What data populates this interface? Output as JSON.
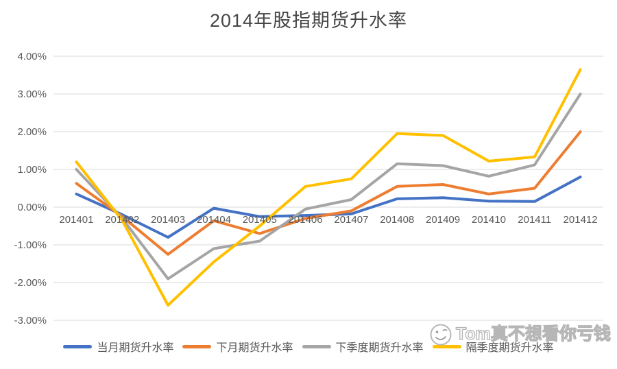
{
  "title": "2014年股指期货升水率",
  "watermark": {
    "icon": "smiley-face-icon",
    "text": "Tom真不想看你亏钱"
  },
  "colors": {
    "gridline": "#d9d9d9",
    "axis_text": "#595959",
    "title_text": "#454545",
    "series_blue": "#4472C4",
    "series_orange": "#ED7D31",
    "series_gray": "#A5A5A5",
    "series_yellow": "#FFC000"
  },
  "chart_data": {
    "type": "line",
    "title": "2014年股指期货升水率",
    "xlabel": "",
    "ylabel": "",
    "grid": true,
    "legend_position": "bottom",
    "ylim": [
      -3,
      4
    ],
    "y_ticks": [
      {
        "label": "4.00%",
        "value": 4
      },
      {
        "label": "3.00%",
        "value": 3
      },
      {
        "label": "2.00%",
        "value": 2
      },
      {
        "label": "1.00%",
        "value": 1
      },
      {
        "label": "0.00%",
        "value": 0
      },
      {
        "label": "-1.00%",
        "value": -1
      },
      {
        "label": "-2.00%",
        "value": -2
      },
      {
        "label": "-3.00%",
        "value": -3
      }
    ],
    "categories": [
      "201401",
      "201402",
      "201403",
      "201404",
      "201405",
      "201406",
      "201407",
      "201408",
      "201409",
      "201410",
      "201411",
      "201412"
    ],
    "series": [
      {
        "name": "当月期货升水率",
        "color": "#4472C4",
        "values": [
          0.35,
          -0.2,
          -0.8,
          -0.03,
          -0.25,
          -0.22,
          -0.18,
          0.22,
          0.25,
          0.16,
          0.15,
          0.8
        ]
      },
      {
        "name": "下月期货升水率",
        "color": "#ED7D31",
        "values": [
          0.63,
          -0.25,
          -1.25,
          -0.36,
          -0.7,
          -0.3,
          -0.1,
          0.55,
          0.6,
          0.35,
          0.5,
          2.0
        ]
      },
      {
        "name": "下季度期货升水率",
        "color": "#A5A5A5",
        "values": [
          1.0,
          -0.3,
          -1.9,
          -1.1,
          -0.9,
          -0.05,
          0.2,
          1.15,
          1.1,
          0.82,
          1.12,
          3.0
        ]
      },
      {
        "name": "隔季度期货升水率",
        "color": "#FFC000",
        "values": [
          1.2,
          -0.35,
          -2.6,
          -1.45,
          -0.5,
          0.55,
          0.75,
          1.95,
          1.9,
          1.22,
          1.33,
          3.65
        ]
      }
    ]
  }
}
